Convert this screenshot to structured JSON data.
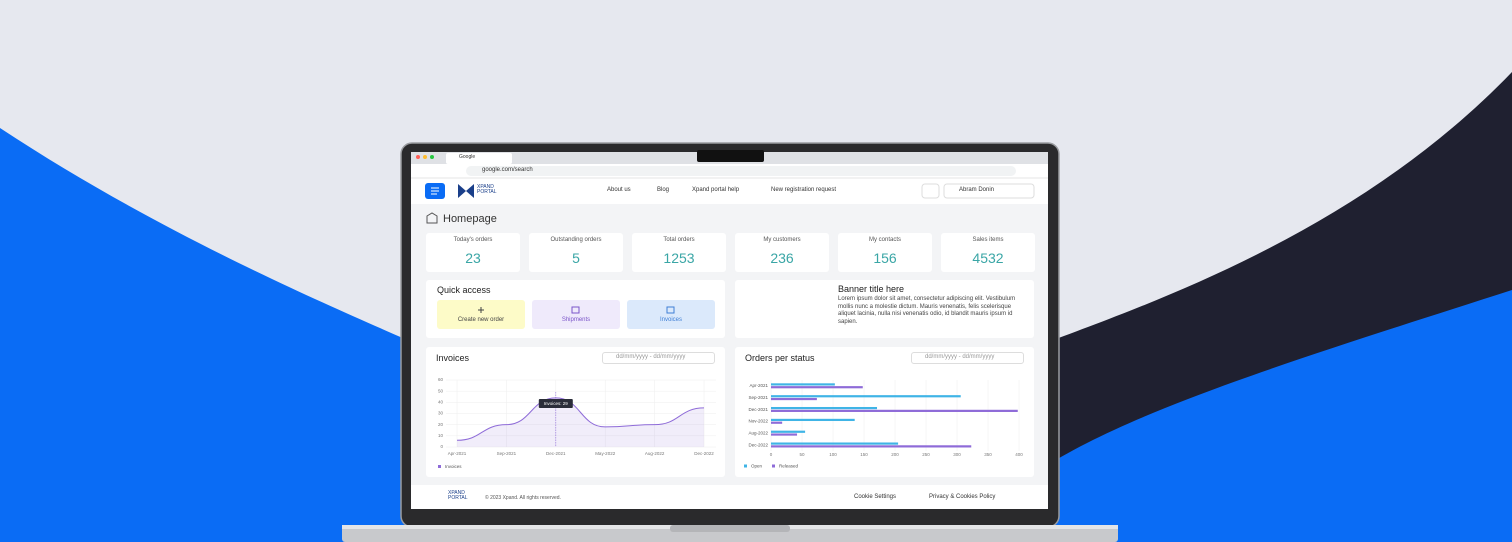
{
  "browser": {
    "tab_title": "Google",
    "url": "google.com/search"
  },
  "header": {
    "logo": [
      "XPAND",
      "PORTAL"
    ],
    "nav": [
      "About us",
      "Blog",
      "Xpand portal help",
      "New registration request"
    ],
    "user": "Abram Donin"
  },
  "page_title": "Homepage",
  "stats": [
    {
      "label": "Today's orders",
      "value": 23
    },
    {
      "label": "Outstanding orders",
      "value": 5
    },
    {
      "label": "Total orders",
      "value": 1253
    },
    {
      "label": "My customers",
      "value": 236
    },
    {
      "label": "My contacts",
      "value": 156
    },
    {
      "label": "Sales items",
      "value": 4532
    }
  ],
  "quick_access": {
    "title": "Quick access",
    "buttons": [
      "Create new order",
      "Shipments",
      "Invoices"
    ]
  },
  "banner": {
    "title": "Banner title here",
    "text": "Lorem ipsum dolor sit amet, consectetur adipiscing elit. Vestibulum mollis nunc a molestie dictum. Mauris venenatis, felis scelerisque aliquet lacinia, nulla nisi venenatis odio, id blandit mauris ipsum id sapien."
  },
  "invoices_chart": {
    "type": "line",
    "title": "Invoices",
    "date_placeholder": "dd/mm/yyyy - dd/mm/yyyy",
    "categories": [
      "Apr-2021",
      "Sep-2021",
      "Dec-2021",
      "May-2022",
      "Aug-2022",
      "Dec-2022"
    ],
    "series": [
      {
        "name": "Invoices",
        "color": "#8e6bd8",
        "values": [
          6,
          20,
          44,
          18,
          20,
          35
        ]
      }
    ],
    "ylim": [
      0,
      60
    ],
    "yticks": [
      0,
      10,
      20,
      30,
      40,
      50,
      60
    ],
    "grid": true,
    "tooltip": "Invoices: 29"
  },
  "orders_chart": {
    "type": "bar",
    "title": "Orders per status",
    "date_placeholder": "dd/mm/yyyy - dd/mm/yyyy",
    "categories": [
      "Apr-2021",
      "Sep-2021",
      "Dec-2021",
      "Nov-2022",
      "Aug-2022",
      "Dec-2022"
    ],
    "series": [
      {
        "name": "Open",
        "color": "#3fb4e6",
        "values": [
          103,
          306,
          171,
          135,
          55,
          205
        ]
      },
      {
        "name": "Released",
        "color": "#8e6bd8",
        "values": [
          148,
          74,
          398,
          18,
          42,
          323
        ]
      }
    ],
    "xlim": [
      0,
      400
    ],
    "xticks": [
      0,
      50,
      100,
      150,
      200,
      250,
      300,
      350,
      400
    ],
    "grid": true
  },
  "footer": {
    "logo": [
      "XPAND",
      "PORTAL"
    ],
    "copyright": "© 2023 Xpand. All rights reserved.",
    "links": [
      "Cookie Settings",
      "Privacy & Cookies Policy"
    ]
  }
}
